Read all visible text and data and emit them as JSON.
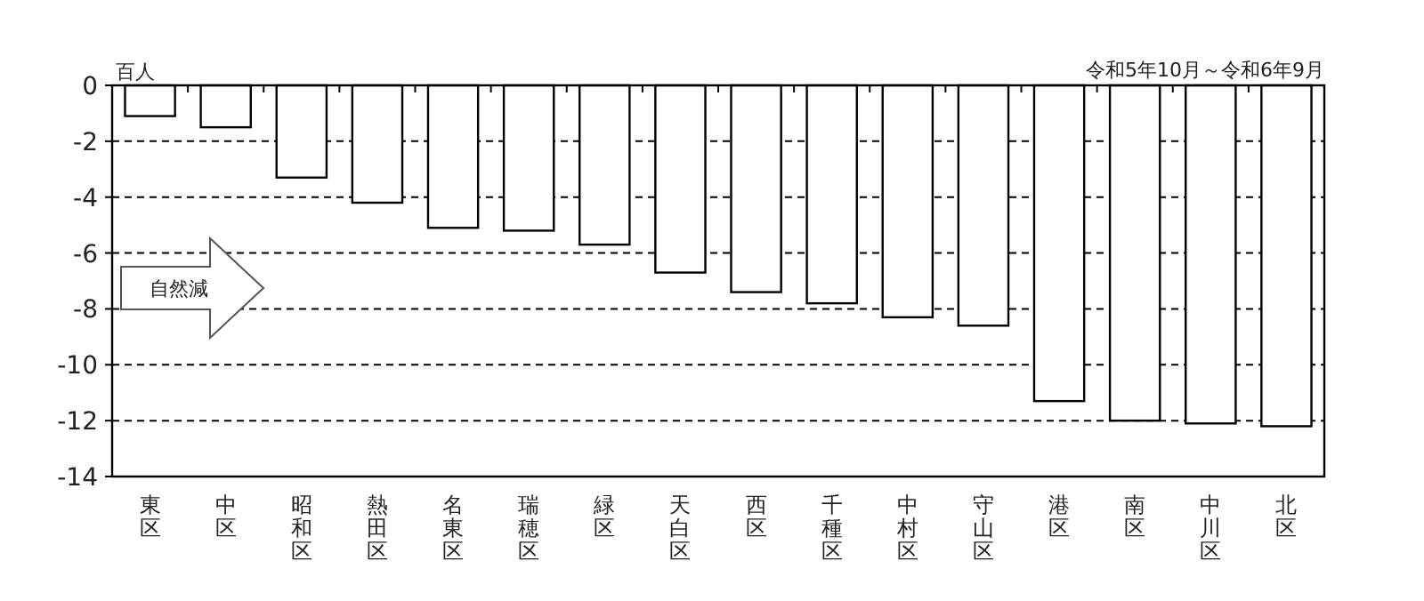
{
  "chart_data": {
    "type": "bar",
    "subtitle": "令和5年10月～令和6年9月",
    "ylabel": "百人",
    "categories": [
      "東区",
      "中区",
      "昭和区",
      "熱田区",
      "名東区",
      "瑞穂区",
      "緑区",
      "天白区",
      "西区",
      "千種区",
      "中村区",
      "守山区",
      "港区",
      "南区",
      "中川区",
      "北区"
    ],
    "values": [
      -1.1,
      -1.5,
      -3.3,
      -4.2,
      -5.1,
      -5.2,
      -5.7,
      -6.7,
      -7.4,
      -7.8,
      -8.3,
      -8.6,
      -11.3,
      -12.0,
      -12.1,
      -12.2
    ],
    "color": "#ffffff",
    "ylim": [
      -14,
      0
    ],
    "yticks": [
      0,
      -2,
      -4,
      -6,
      -8,
      -10,
      -12,
      -14
    ],
    "grid": "y",
    "annotations": [
      "自然減"
    ]
  }
}
